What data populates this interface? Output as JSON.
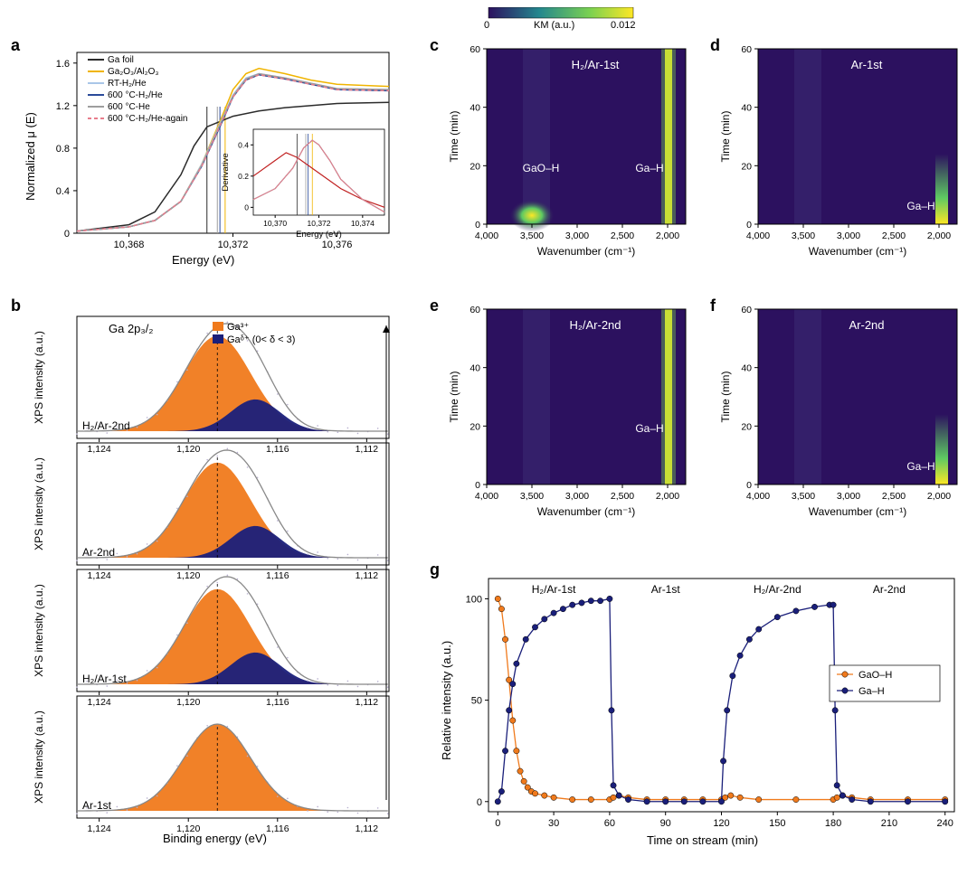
{
  "labels": {
    "a": "a",
    "b": "b",
    "c": "c",
    "d": "d",
    "e": "e",
    "f": "f",
    "g": "g"
  },
  "colorbar": {
    "label": "KM (a.u.)",
    "min": "0",
    "max": "0.012",
    "gradient": [
      "#2c115f",
      "#24878e",
      "#7ad151",
      "#fde725"
    ],
    "width": 160,
    "height": 12
  },
  "panel_a": {
    "xlabel": "Energy (eV)",
    "ylabel": "Normalized μ (E)",
    "xlim": [
      10366,
      10378
    ],
    "xticks": [
      "10,368",
      "10,372",
      "10,376"
    ],
    "ylim": [
      0,
      1.7
    ],
    "yticks": [
      "0",
      "0.4",
      "0.8",
      "1.2",
      "1.6"
    ],
    "inset_xlabel": "Energy (eV)",
    "inset_ylabel": "Derivative",
    "inset_xticks": [
      "10,370",
      "10,372",
      "10,374"
    ],
    "inset_yticks": [
      "0",
      "0.2",
      "0.4"
    ],
    "legend": [
      {
        "label": "Ga foil",
        "color": "#2b2b2b"
      },
      {
        "label": "Ga₂O₃/Al₂O₃",
        "color": "#f0b400"
      },
      {
        "label": "RT-H₂/He",
        "color": "#a9c6e8"
      },
      {
        "label": "600 °C-H₂/He",
        "color": "#2a4a9a"
      },
      {
        "label": "600 °C-He",
        "color": "#9e9e9e"
      },
      {
        "label": "600 °C-H₂/He-again",
        "color": "#e87d8c",
        "dash": true
      }
    ],
    "vlines": [
      {
        "x": 10371.0,
        "color": "#2b2b2b"
      },
      {
        "x": 10371.7,
        "color": "#f0b400"
      },
      {
        "x": 10371.5,
        "color": "#2a4a9a"
      },
      {
        "x": 10371.4,
        "color": "#9e9e9e"
      }
    ],
    "series": {
      "Ga_foil": {
        "color": "#2b2b2b",
        "pts": [
          [
            10366,
            0.02
          ],
          [
            10368,
            0.08
          ],
          [
            10369,
            0.2
          ],
          [
            10370,
            0.55
          ],
          [
            10370.5,
            0.82
          ],
          [
            10371,
            1.0
          ],
          [
            10372,
            1.1
          ],
          [
            10373,
            1.15
          ],
          [
            10374,
            1.18
          ],
          [
            10376,
            1.22
          ],
          [
            10378,
            1.23
          ]
        ]
      },
      "Ga2O3": {
        "color": "#f0b400",
        "pts": [
          [
            10366,
            0.02
          ],
          [
            10368,
            0.06
          ],
          [
            10369,
            0.12
          ],
          [
            10370,
            0.3
          ],
          [
            10370.8,
            0.65
          ],
          [
            10371.5,
            1.05
          ],
          [
            10372,
            1.35
          ],
          [
            10372.5,
            1.5
          ],
          [
            10373,
            1.55
          ],
          [
            10374,
            1.5
          ],
          [
            10375,
            1.44
          ],
          [
            10376,
            1.4
          ],
          [
            10378,
            1.38
          ]
        ]
      },
      "RT": {
        "color": "#a9c6e8",
        "pts": [
          [
            10366,
            0.02
          ],
          [
            10368,
            0.06
          ],
          [
            10369,
            0.12
          ],
          [
            10370,
            0.3
          ],
          [
            10370.8,
            0.65
          ],
          [
            10371.5,
            1.03
          ],
          [
            10372,
            1.3
          ],
          [
            10372.5,
            1.46
          ],
          [
            10373,
            1.5
          ],
          [
            10374,
            1.46
          ],
          [
            10376,
            1.36
          ],
          [
            10378,
            1.35
          ]
        ]
      },
      "H600": {
        "color": "#2a4a9a",
        "pts": [
          [
            10366,
            0.02
          ],
          [
            10368,
            0.06
          ],
          [
            10369,
            0.12
          ],
          [
            10370,
            0.3
          ],
          [
            10370.8,
            0.63
          ],
          [
            10371.5,
            1.0
          ],
          [
            10372,
            1.28
          ],
          [
            10372.5,
            1.44
          ],
          [
            10373,
            1.49
          ],
          [
            10374,
            1.45
          ],
          [
            10376,
            1.35
          ],
          [
            10378,
            1.34
          ]
        ]
      },
      "He600": {
        "color": "#9e9e9e",
        "pts": [
          [
            10366,
            0.02
          ],
          [
            10368,
            0.06
          ],
          [
            10369,
            0.12
          ],
          [
            10370,
            0.3
          ],
          [
            10370.8,
            0.64
          ],
          [
            10371.5,
            1.02
          ],
          [
            10372,
            1.29
          ],
          [
            10372.5,
            1.45
          ],
          [
            10373,
            1.5
          ],
          [
            10374,
            1.46
          ],
          [
            10376,
            1.36
          ],
          [
            10378,
            1.35
          ]
        ]
      },
      "Again": {
        "color": "#e87d8c",
        "dash": true,
        "pts": [
          [
            10366,
            0.02
          ],
          [
            10368,
            0.06
          ],
          [
            10369,
            0.12
          ],
          [
            10370,
            0.3
          ],
          [
            10370.8,
            0.63
          ],
          [
            10371.5,
            1.01
          ],
          [
            10372,
            1.28
          ],
          [
            10372.5,
            1.44
          ],
          [
            10373,
            1.49
          ],
          [
            10374,
            1.45
          ],
          [
            10376,
            1.35
          ],
          [
            10378,
            1.34
          ]
        ]
      }
    },
    "inset_series": {
      "Ga_foil": {
        "color": "#c02020",
        "pts": [
          [
            10369,
            0.2
          ],
          [
            10370,
            0.3
          ],
          [
            10370.5,
            0.35
          ],
          [
            10371,
            0.32
          ],
          [
            10372,
            0.22
          ],
          [
            10373,
            0.12
          ],
          [
            10374,
            0.05
          ],
          [
            10375,
            0.0
          ]
        ]
      },
      "others": [
        [
          10369,
          0.05
        ],
        [
          10370,
          0.12
        ],
        [
          10370.8,
          0.25
        ],
        [
          10371.3,
          0.38
        ],
        [
          10371.7,
          0.43
        ],
        [
          10372.0,
          0.4
        ],
        [
          10372.5,
          0.3
        ],
        [
          10373,
          0.18
        ],
        [
          10374,
          0.05
        ],
        [
          10375,
          -0.03
        ]
      ]
    }
  },
  "panel_b": {
    "xlabel": "Binding energy (eV)",
    "ylabel": "XPS intensity (a.u.)",
    "xlim": [
      1125,
      1111
    ],
    "xticks": [
      "1,124",
      "1,120",
      "1,116",
      "1,112"
    ],
    "title": "Ga 2p₃/₂",
    "legend": [
      {
        "label": "Ga³⁺",
        "color": "#f07a1c"
      },
      {
        "label": "Gaᵟ⁺ (0< δ < 3)",
        "color": "#1a1f7a"
      }
    ],
    "sub": [
      {
        "name": "H₂/Ar-2nd",
        "peak_x": 1118.7,
        "delta": true
      },
      {
        "name": "Ar-2nd",
        "peak_x": 1118.7,
        "delta": true
      },
      {
        "name": "H₂/Ar-1st",
        "peak_x": 1118.7,
        "delta": true
      },
      {
        "name": "Ar-1st",
        "peak_x": 1118.7,
        "delta": false
      }
    ],
    "colors": {
      "ga3": "#f07a1c",
      "gad": "#1a1f7a",
      "fit": "#888888",
      "dots": "#b8b0d0"
    }
  },
  "heatmaps": {
    "xlabel": "Wavenumber (cm⁻¹)",
    "ylabel": "Time (min)",
    "xlim": [
      4000,
      1800
    ],
    "xticks": [
      "4,000",
      "3,500",
      "3,000",
      "2,500",
      "2,000"
    ],
    "ylim": [
      0,
      60
    ],
    "yticks": [
      "0",
      "20",
      "40",
      "60"
    ],
    "bg": "#2c115f",
    "band_wn": 1990,
    "band_color": "#fde725",
    "gaoh_wn": 3500,
    "annot_gaoh": "GaO–H",
    "annot_gah": "Ga–H",
    "panels": {
      "c": {
        "title": "H₂/Ar-1st",
        "gaoh": true,
        "full_band": true
      },
      "d": {
        "title": "Ar-1st",
        "gaoh": false,
        "full_band": false
      },
      "e": {
        "title": "H₂/Ar-2nd",
        "gaoh": false,
        "full_band": true
      },
      "f": {
        "title": "Ar-2nd",
        "gaoh": false,
        "full_band": false
      }
    }
  },
  "panel_g": {
    "xlabel": "Time on stream (min)",
    "ylabel": "Relative intensity (a.u.)",
    "xlim": [
      -5,
      245
    ],
    "xticks": [
      "0",
      "30",
      "60",
      "90",
      "120",
      "150",
      "180",
      "210",
      "240"
    ],
    "ylim": [
      -5,
      110
    ],
    "yticks": [
      "0",
      "50",
      "100"
    ],
    "regions": [
      "H₂/Ar-1st",
      "Ar-1st",
      "H₂/Ar-2nd",
      "Ar-2nd"
    ],
    "region_x": [
      30,
      90,
      150,
      210
    ],
    "legend": [
      {
        "label": "GaO–H",
        "color": "#f07a1c"
      },
      {
        "label": "Ga–H",
        "color": "#1a1f7a"
      }
    ],
    "series": {
      "GaOH": {
        "color": "#f07a1c",
        "pts": [
          [
            0,
            100
          ],
          [
            2,
            95
          ],
          [
            4,
            80
          ],
          [
            6,
            60
          ],
          [
            8,
            40
          ],
          [
            10,
            25
          ],
          [
            12,
            15
          ],
          [
            14,
            10
          ],
          [
            16,
            7
          ],
          [
            18,
            5
          ],
          [
            20,
            4
          ],
          [
            25,
            3
          ],
          [
            30,
            2
          ],
          [
            40,
            1
          ],
          [
            50,
            1
          ],
          [
            60,
            1
          ],
          [
            62,
            2
          ],
          [
            65,
            3
          ],
          [
            70,
            2
          ],
          [
            80,
            1
          ],
          [
            90,
            1
          ],
          [
            100,
            1
          ],
          [
            110,
            1
          ],
          [
            120,
            1
          ],
          [
            122,
            2
          ],
          [
            125,
            3
          ],
          [
            130,
            2
          ],
          [
            140,
            1
          ],
          [
            160,
            1
          ],
          [
            180,
            1
          ],
          [
            182,
            2
          ],
          [
            185,
            3
          ],
          [
            190,
            2
          ],
          [
            200,
            1
          ],
          [
            220,
            1
          ],
          [
            240,
            1
          ]
        ]
      },
      "GaH": {
        "color": "#1a1f7a",
        "pts": [
          [
            0,
            0
          ],
          [
            2,
            5
          ],
          [
            4,
            25
          ],
          [
            6,
            45
          ],
          [
            8,
            58
          ],
          [
            10,
            68
          ],
          [
            15,
            80
          ],
          [
            20,
            86
          ],
          [
            25,
            90
          ],
          [
            30,
            93
          ],
          [
            35,
            95
          ],
          [
            40,
            97
          ],
          [
            45,
            98
          ],
          [
            50,
            99
          ],
          [
            55,
            99
          ],
          [
            60,
            100
          ],
          [
            61,
            45
          ],
          [
            62,
            8
          ],
          [
            65,
            3
          ],
          [
            70,
            1
          ],
          [
            80,
            0
          ],
          [
            90,
            0
          ],
          [
            100,
            0
          ],
          [
            110,
            0
          ],
          [
            120,
            0
          ],
          [
            121,
            20
          ],
          [
            123,
            45
          ],
          [
            126,
            62
          ],
          [
            130,
            72
          ],
          [
            135,
            80
          ],
          [
            140,
            85
          ],
          [
            150,
            91
          ],
          [
            160,
            94
          ],
          [
            170,
            96
          ],
          [
            178,
            97
          ],
          [
            180,
            97
          ],
          [
            181,
            45
          ],
          [
            182,
            8
          ],
          [
            185,
            3
          ],
          [
            190,
            1
          ],
          [
            200,
            0
          ],
          [
            220,
            0
          ],
          [
            240,
            0
          ]
        ]
      }
    }
  }
}
